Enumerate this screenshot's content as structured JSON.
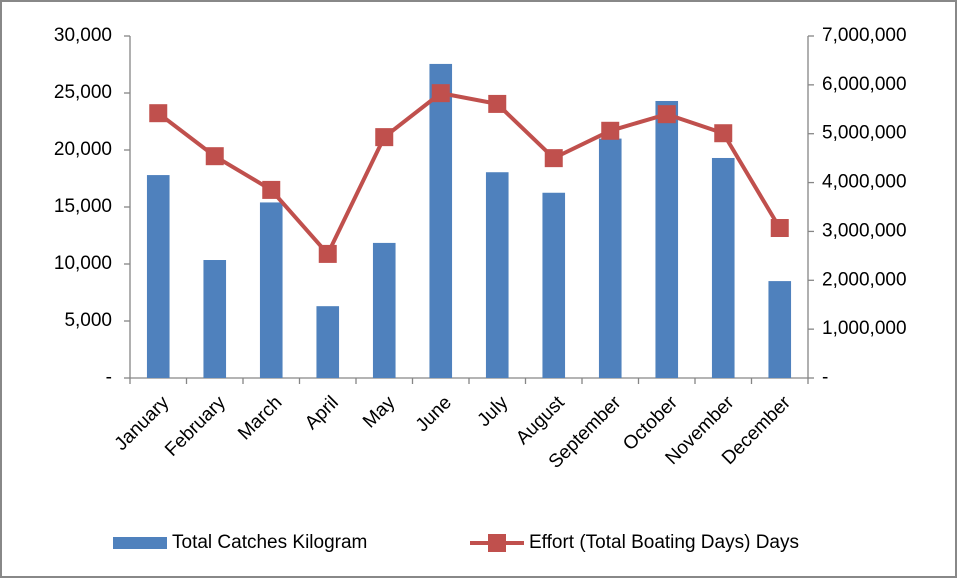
{
  "chart_data": {
    "type": "bar-line",
    "categories": [
      "January",
      "February",
      "March",
      "April",
      "May",
      "June",
      "July",
      "August",
      "September",
      "October",
      "November",
      "December"
    ],
    "series": [
      {
        "name": "Total Catches Kilogram",
        "type": "bar",
        "color": "#4f81bd",
        "values": [
          17800,
          10350,
          15400,
          6300,
          11850,
          27550,
          18050,
          16250,
          21000,
          24300,
          19300,
          8500
        ]
      },
      {
        "name": "Effort (Total Boating Days) Days",
        "type": "line",
        "axis": "y2",
        "color": "#c0504d",
        "values": [
          5420000,
          4540000,
          3850000,
          2540000,
          4930000,
          5830000,
          5610000,
          4500000,
          5060000,
          5400000,
          5010000,
          3070000
        ]
      }
    ],
    "ylim": [
      0,
      30000
    ],
    "yticks": [
      {
        "value": 0,
        "label": "-"
      },
      {
        "value": 5000,
        "label": "5,000"
      },
      {
        "value": 10000,
        "label": "10,000"
      },
      {
        "value": 15000,
        "label": "15,000"
      },
      {
        "value": 20000,
        "label": "20,000"
      },
      {
        "value": 25000,
        "label": "25,000"
      },
      {
        "value": 30000,
        "label": "30,000"
      }
    ],
    "y2lim": [
      0,
      7000000
    ],
    "y2ticks": [
      {
        "value": 0,
        "label": "-"
      },
      {
        "value": 1000000,
        "label": "1,000,000"
      },
      {
        "value": 2000000,
        "label": "2,000,000"
      },
      {
        "value": 3000000,
        "label": "3,000,000"
      },
      {
        "value": 4000000,
        "label": "4,000,000"
      },
      {
        "value": 5000000,
        "label": "5,000,000"
      },
      {
        "value": 6000000,
        "label": "6,000,000"
      },
      {
        "value": 7000000,
        "label": "7,000,000"
      }
    ],
    "grid": false,
    "legend": "bottom"
  }
}
